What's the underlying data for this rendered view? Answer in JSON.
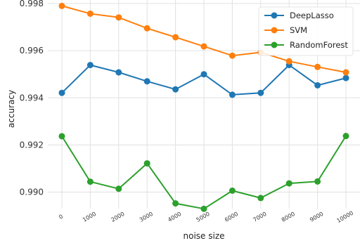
{
  "chart_data": {
    "type": "line",
    "xlabel": "noise size",
    "ylabel": "accuracy",
    "x": [
      0,
      1000,
      2000,
      3000,
      4000,
      5000,
      6000,
      7000,
      8000,
      9000,
      10000
    ],
    "x_tick_labels": [
      "0",
      "1000",
      "2000",
      "3000",
      "4000",
      "5000",
      "6000",
      "7000",
      "8000",
      "9000",
      "10000"
    ],
    "y_ticks": [
      0.99,
      0.992,
      0.994,
      0.996,
      0.998
    ],
    "y_tick_labels": [
      "0.990",
      "0.992",
      "0.994",
      "0.996",
      "0.998"
    ],
    "ylim": [
      0.9893,
      0.99815
    ],
    "grid": true,
    "legend_position": "top-right",
    "series": [
      {
        "name": "DeepLasso",
        "color": "#1f77b4",
        "values": [
          0.99421,
          0.99539,
          0.99508,
          0.9947,
          0.99436,
          0.995,
          0.99413,
          0.99421,
          0.99539,
          0.99453,
          0.99484
        ]
      },
      {
        "name": "SVM",
        "color": "#ff7f0e",
        "values": [
          0.9979,
          0.99757,
          0.99741,
          0.99695,
          0.99657,
          0.99618,
          0.99579,
          0.99593,
          0.99555,
          0.99531,
          0.99508
        ]
      },
      {
        "name": "RandomForest",
        "color": "#2ca02c",
        "values": [
          0.99237,
          0.99044,
          0.99014,
          0.99122,
          0.98952,
          0.98929,
          0.99006,
          0.98975,
          0.99037,
          0.99045,
          0.99238
        ]
      }
    ]
  }
}
